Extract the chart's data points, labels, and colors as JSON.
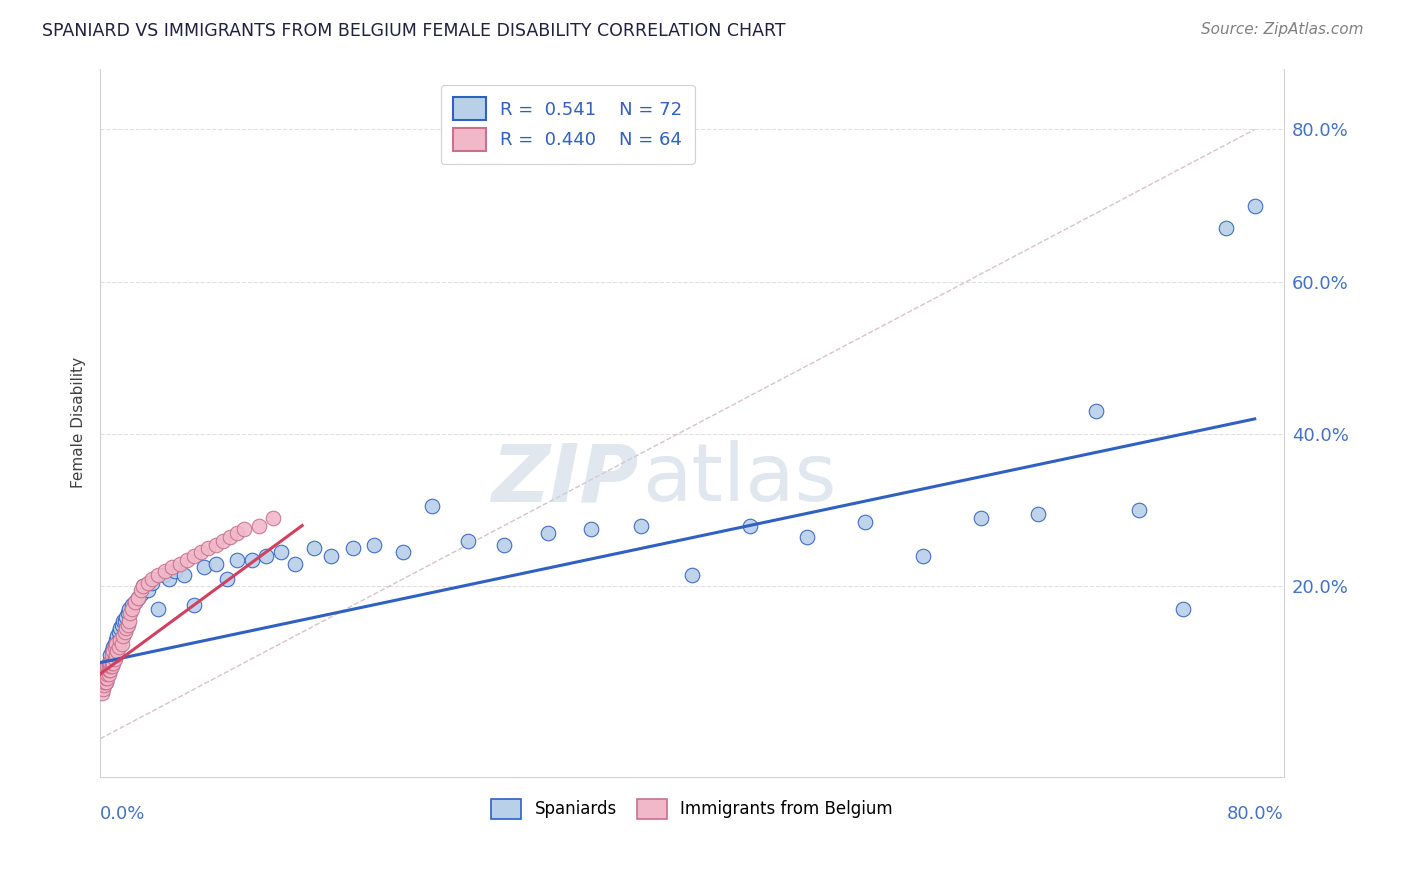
{
  "title": "SPANIARD VS IMMIGRANTS FROM BELGIUM FEMALE DISABILITY CORRELATION CHART",
  "source": "Source: ZipAtlas.com",
  "ylabel": "Female Disability",
  "y_tick_labels": [
    "80.0%",
    "60.0%",
    "40.0%",
    "20.0%"
  ],
  "y_tick_values": [
    0.8,
    0.6,
    0.4,
    0.2
  ],
  "x_range": [
    0.0,
    0.82
  ],
  "y_range": [
    -0.05,
    0.88
  ],
  "legend_r1": "R =  0.541",
  "legend_n1": "N = 72",
  "legend_r2": "R =  0.440",
  "legend_n2": "N = 64",
  "color_spaniards": "#b8d0e8",
  "color_belgium": "#f0b8c8",
  "color_line_spaniards": "#3060c0",
  "color_line_belgium": "#d04060",
  "color_diag": "#c8a8b8",
  "spaniards_x": [
    0.002,
    0.003,
    0.004,
    0.005,
    0.005,
    0.006,
    0.006,
    0.007,
    0.007,
    0.008,
    0.008,
    0.009,
    0.009,
    0.01,
    0.01,
    0.011,
    0.011,
    0.012,
    0.012,
    0.013,
    0.013,
    0.014,
    0.015,
    0.016,
    0.017,
    0.018,
    0.019,
    0.02,
    0.022,
    0.024,
    0.026,
    0.028,
    0.03,
    0.033,
    0.036,
    0.04,
    0.044,
    0.048,
    0.052,
    0.058,
    0.065,
    0.072,
    0.08,
    0.088,
    0.095,
    0.105,
    0.115,
    0.125,
    0.135,
    0.148,
    0.16,
    0.175,
    0.19,
    0.21,
    0.23,
    0.255,
    0.28,
    0.31,
    0.34,
    0.375,
    0.41,
    0.45,
    0.49,
    0.53,
    0.57,
    0.61,
    0.65,
    0.69,
    0.72,
    0.75,
    0.78,
    0.8
  ],
  "spaniards_y": [
    0.07,
    0.08,
    0.075,
    0.09,
    0.085,
    0.095,
    0.1,
    0.1,
    0.11,
    0.105,
    0.115,
    0.11,
    0.12,
    0.115,
    0.125,
    0.12,
    0.13,
    0.125,
    0.135,
    0.13,
    0.14,
    0.145,
    0.15,
    0.155,
    0.155,
    0.16,
    0.165,
    0.17,
    0.175,
    0.18,
    0.185,
    0.19,
    0.2,
    0.195,
    0.205,
    0.17,
    0.215,
    0.21,
    0.22,
    0.215,
    0.175,
    0.225,
    0.23,
    0.21,
    0.235,
    0.235,
    0.24,
    0.245,
    0.23,
    0.25,
    0.24,
    0.25,
    0.255,
    0.245,
    0.305,
    0.26,
    0.255,
    0.27,
    0.275,
    0.28,
    0.215,
    0.28,
    0.265,
    0.285,
    0.24,
    0.29,
    0.295,
    0.43,
    0.3,
    0.17,
    0.67,
    0.7
  ],
  "belgium_x": [
    0.001,
    0.001,
    0.002,
    0.002,
    0.002,
    0.003,
    0.003,
    0.003,
    0.003,
    0.004,
    0.004,
    0.004,
    0.005,
    0.005,
    0.005,
    0.005,
    0.006,
    0.006,
    0.006,
    0.006,
    0.007,
    0.007,
    0.007,
    0.008,
    0.008,
    0.008,
    0.009,
    0.009,
    0.01,
    0.01,
    0.011,
    0.011,
    0.012,
    0.013,
    0.014,
    0.015,
    0.016,
    0.017,
    0.018,
    0.019,
    0.02,
    0.021,
    0.022,
    0.024,
    0.026,
    0.028,
    0.03,
    0.033,
    0.036,
    0.04,
    0.045,
    0.05,
    0.055,
    0.06,
    0.065,
    0.07,
    0.075,
    0.08,
    0.085,
    0.09,
    0.095,
    0.1,
    0.11,
    0.12
  ],
  "belgium_y": [
    0.06,
    0.07,
    0.065,
    0.075,
    0.08,
    0.07,
    0.075,
    0.08,
    0.085,
    0.075,
    0.08,
    0.09,
    0.08,
    0.085,
    0.09,
    0.095,
    0.085,
    0.09,
    0.095,
    0.1,
    0.09,
    0.095,
    0.1,
    0.095,
    0.1,
    0.11,
    0.1,
    0.115,
    0.105,
    0.12,
    0.11,
    0.125,
    0.115,
    0.12,
    0.13,
    0.125,
    0.135,
    0.14,
    0.145,
    0.15,
    0.155,
    0.165,
    0.17,
    0.18,
    0.185,
    0.195,
    0.2,
    0.205,
    0.21,
    0.215,
    0.22,
    0.225,
    0.23,
    0.235,
    0.24,
    0.245,
    0.25,
    0.255,
    0.26,
    0.265,
    0.27,
    0.275,
    0.28,
    0.29
  ],
  "sp_line_x": [
    0.0,
    0.8
  ],
  "sp_line_y": [
    0.1,
    0.42
  ],
  "be_line_x": [
    0.0,
    0.14
  ],
  "be_line_y": [
    0.085,
    0.28
  ],
  "diag_line_x": [
    0.0,
    0.8
  ],
  "diag_line_y": [
    0.0,
    0.8
  ],
  "watermark_zip_color": "#c8d4e0",
  "watermark_atlas_color": "#c8d4e0",
  "background_color": "#ffffff",
  "grid_color": "#e0e0e0",
  "spine_color": "#d0d0d0",
  "title_color": "#202040",
  "source_color": "#808080",
  "ylabel_color": "#404040",
  "yaxis_label_color": "#4472c4",
  "xaxis_label_color": "#4472c4"
}
